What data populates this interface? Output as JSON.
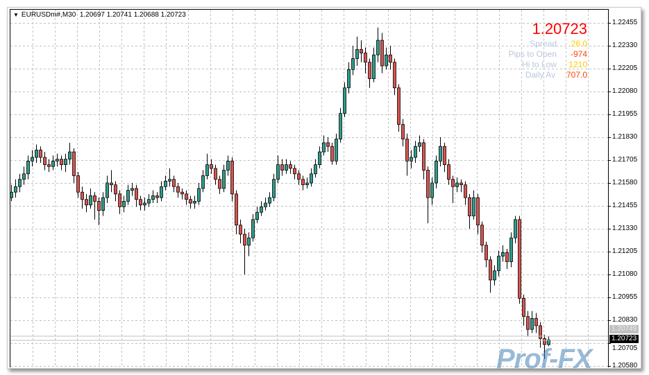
{
  "header": {
    "symbol": "EURUSDm#,M30",
    "ohlc": "1.20697 1.20741 1.20688 1.20723"
  },
  "info_panel": {
    "price": "1.20723",
    "rows": [
      {
        "label": "Spread",
        "value": "26.0",
        "color": "#ffcc00"
      },
      {
        "label": "Pips to Open",
        "value": "-974",
        "color": "#ff4400"
      },
      {
        "label": "Hi to Low",
        "value": "1210",
        "color": "#ffcc00"
      },
      {
        "label": "Daily Av",
        "value": "707.0",
        "color": "#ff4400"
      }
    ]
  },
  "price_axis": {
    "labels": [
      "1.22455",
      "1.22330",
      "1.22205",
      "1.22080",
      "1.21955",
      "1.21830",
      "1.21705",
      "1.21580",
      "1.21455",
      "1.21330",
      "1.21205",
      "1.21080",
      "1.20955",
      "1.20830",
      "1.20705",
      "1.20580"
    ],
    "ask_label": "1.20749",
    "bid_label": "1.20723"
  },
  "watermark": "Prof-FX",
  "colors": {
    "bull": "#2e9c8c",
    "bear": "#d9534f",
    "grid": "#c0c0c0"
  },
  "chart_data": {
    "type": "candlestick",
    "symbol": "EURUSDm#",
    "timeframe": "M30",
    "ylim": [
      1.2058,
      1.22455
    ],
    "grid": true,
    "bid": 1.20723,
    "ask": 1.20749,
    "candles": [
      [
        1.215,
        1.2157,
        1.2148,
        1.2153
      ],
      [
        1.2153,
        1.216,
        1.215,
        1.2156
      ],
      [
        1.2156,
        1.2163,
        1.2153,
        1.216
      ],
      [
        1.216,
        1.2167,
        1.2157,
        1.2163
      ],
      [
        1.2163,
        1.2173,
        1.216,
        1.217
      ],
      [
        1.217,
        1.2176,
        1.2167,
        1.2172
      ],
      [
        1.2172,
        1.2179,
        1.2169,
        1.2176
      ],
      [
        1.2176,
        1.2178,
        1.2169,
        1.2172
      ],
      [
        1.2172,
        1.2175,
        1.2165,
        1.2168
      ],
      [
        1.2168,
        1.2171,
        1.2164,
        1.2167
      ],
      [
        1.2167,
        1.2173,
        1.2165,
        1.217
      ],
      [
        1.217,
        1.2174,
        1.2167,
        1.2171
      ],
      [
        1.2171,
        1.2173,
        1.2165,
        1.2168
      ],
      [
        1.2168,
        1.2174,
        1.2164,
        1.2171
      ],
      [
        1.2171,
        1.218,
        1.2168,
        1.2175
      ],
      [
        1.2175,
        1.2177,
        1.2158,
        1.2162
      ],
      [
        1.2162,
        1.2164,
        1.215,
        1.2153
      ],
      [
        1.2153,
        1.2156,
        1.2144,
        1.2149
      ],
      [
        1.2149,
        1.2152,
        1.2142,
        1.2146
      ],
      [
        1.2146,
        1.2155,
        1.2144,
        1.2151
      ],
      [
        1.2151,
        1.2153,
        1.2138,
        1.2148
      ],
      [
        1.2148,
        1.215,
        1.2135,
        1.2143
      ],
      [
        1.2143,
        1.2153,
        1.214,
        1.215
      ],
      [
        1.215,
        1.2162,
        1.2147,
        1.2158
      ],
      [
        1.2158,
        1.2165,
        1.2153,
        1.2157
      ],
      [
        1.2157,
        1.2159,
        1.2148,
        1.2152
      ],
      [
        1.2152,
        1.2154,
        1.2141,
        1.2145
      ],
      [
        1.2145,
        1.2151,
        1.2142,
        1.2148
      ],
      [
        1.2148,
        1.2157,
        1.2146,
        1.2154
      ],
      [
        1.2154,
        1.2158,
        1.2151,
        1.2155
      ],
      [
        1.2155,
        1.2157,
        1.2145,
        1.2149
      ],
      [
        1.2149,
        1.2151,
        1.2143,
        1.2146
      ],
      [
        1.2146,
        1.215,
        1.2143,
        1.2147
      ],
      [
        1.2147,
        1.2152,
        1.2145,
        1.2149
      ],
      [
        1.2149,
        1.2154,
        1.2147,
        1.2151
      ],
      [
        1.2151,
        1.2153,
        1.2147,
        1.215
      ],
      [
        1.215,
        1.2159,
        1.2148,
        1.2156
      ],
      [
        1.2156,
        1.2162,
        1.2154,
        1.2159
      ],
      [
        1.2159,
        1.2166,
        1.2156,
        1.216
      ],
      [
        1.216,
        1.2162,
        1.2153,
        1.2156
      ],
      [
        1.2156,
        1.2158,
        1.215,
        1.2153
      ],
      [
        1.2153,
        1.2155,
        1.2149,
        1.2152
      ],
      [
        1.2152,
        1.2154,
        1.2146,
        1.2149
      ],
      [
        1.2149,
        1.2151,
        1.2144,
        1.2147
      ],
      [
        1.2147,
        1.2151,
        1.2144,
        1.2148
      ],
      [
        1.2148,
        1.2158,
        1.2146,
        1.2155
      ],
      [
        1.2155,
        1.2165,
        1.2153,
        1.2162
      ],
      [
        1.2162,
        1.2174,
        1.216,
        1.2168
      ],
      [
        1.2168,
        1.2171,
        1.2163,
        1.2166
      ],
      [
        1.2166,
        1.2168,
        1.2157,
        1.216
      ],
      [
        1.216,
        1.2162,
        1.2152,
        1.2155
      ],
      [
        1.2155,
        1.2168,
        1.2153,
        1.2165
      ],
      [
        1.2165,
        1.2173,
        1.2162,
        1.217
      ],
      [
        1.217,
        1.2172,
        1.2148,
        1.2152
      ],
      [
        1.2152,
        1.2154,
        1.213,
        1.2135
      ],
      [
        1.2135,
        1.2138,
        1.2125,
        1.213
      ],
      [
        1.213,
        1.2133,
        1.2108,
        1.2124
      ],
      [
        1.2124,
        1.2131,
        1.2118,
        1.2128
      ],
      [
        1.2128,
        1.2141,
        1.2126,
        1.2138
      ],
      [
        1.2138,
        1.2145,
        1.2136,
        1.2142
      ],
      [
        1.2142,
        1.2148,
        1.214,
        1.2145
      ],
      [
        1.2145,
        1.215,
        1.2143,
        1.2147
      ],
      [
        1.2147,
        1.2153,
        1.2145,
        1.215
      ],
      [
        1.215,
        1.2163,
        1.2148,
        1.216
      ],
      [
        1.216,
        1.2173,
        1.2158,
        1.2168
      ],
      [
        1.2168,
        1.2171,
        1.2162,
        1.2165
      ],
      [
        1.2165,
        1.2171,
        1.2163,
        1.2168
      ],
      [
        1.2168,
        1.217,
        1.2163,
        1.2166
      ],
      [
        1.2166,
        1.2168,
        1.216,
        1.2163
      ],
      [
        1.2163,
        1.2165,
        1.2157,
        1.216
      ],
      [
        1.216,
        1.2162,
        1.2154,
        1.2157
      ],
      [
        1.2157,
        1.2161,
        1.2155,
        1.2158
      ],
      [
        1.2158,
        1.2166,
        1.2156,
        1.2163
      ],
      [
        1.2163,
        1.2171,
        1.2161,
        1.2168
      ],
      [
        1.2168,
        1.2178,
        1.2166,
        1.2175
      ],
      [
        1.2175,
        1.2184,
        1.2173,
        1.218
      ],
      [
        1.218,
        1.2183,
        1.2175,
        1.2178
      ],
      [
        1.2178,
        1.218,
        1.2168,
        1.217
      ],
      [
        1.217,
        1.2185,
        1.2168,
        1.2182
      ],
      [
        1.2182,
        1.2199,
        1.218,
        1.2196
      ],
      [
        1.2196,
        1.2213,
        1.2194,
        1.221
      ],
      [
        1.221,
        1.2224,
        1.2207,
        1.222
      ],
      [
        1.222,
        1.2233,
        1.2217,
        1.2226
      ],
      [
        1.2226,
        1.2238,
        1.2222,
        1.2231
      ],
      [
        1.2231,
        1.2236,
        1.2224,
        1.2229
      ],
      [
        1.2229,
        1.2232,
        1.2218,
        1.2224
      ],
      [
        1.2224,
        1.2226,
        1.221,
        1.2215
      ],
      [
        1.2215,
        1.2232,
        1.2213,
        1.2228
      ],
      [
        1.2228,
        1.2243,
        1.2224,
        1.2236
      ],
      [
        1.2236,
        1.224,
        1.2218,
        1.2222
      ],
      [
        1.2222,
        1.2232,
        1.222,
        1.2228
      ],
      [
        1.2228,
        1.2233,
        1.222,
        1.2224
      ],
      [
        1.2224,
        1.2226,
        1.2206,
        1.221
      ],
      [
        1.221,
        1.2212,
        1.2186,
        1.219
      ],
      [
        1.219,
        1.2193,
        1.2178,
        1.2182
      ],
      [
        1.2182,
        1.2185,
        1.2162,
        1.217
      ],
      [
        1.217,
        1.2176,
        1.2166,
        1.2172
      ],
      [
        1.2172,
        1.2181,
        1.2169,
        1.2178
      ],
      [
        1.2178,
        1.2184,
        1.2175,
        1.218
      ],
      [
        1.218,
        1.2182,
        1.216,
        1.2165
      ],
      [
        1.2165,
        1.2167,
        1.2136,
        1.215
      ],
      [
        1.215,
        1.2161,
        1.2146,
        1.2158
      ],
      [
        1.2158,
        1.2173,
        1.2155,
        1.217
      ],
      [
        1.217,
        1.2183,
        1.2167,
        1.2178
      ],
      [
        1.2178,
        1.218,
        1.2164,
        1.2168
      ],
      [
        1.2168,
        1.2171,
        1.2157,
        1.216
      ],
      [
        1.216,
        1.2162,
        1.2147,
        1.2156
      ],
      [
        1.2156,
        1.2161,
        1.2153,
        1.2158
      ],
      [
        1.2158,
        1.216,
        1.2153,
        1.2157
      ],
      [
        1.2157,
        1.2159,
        1.2146,
        1.215
      ],
      [
        1.215,
        1.2152,
        1.2133,
        1.214
      ],
      [
        1.214,
        1.2154,
        1.2138,
        1.215
      ],
      [
        1.215,
        1.2152,
        1.213,
        1.2135
      ],
      [
        1.2135,
        1.2137,
        1.212,
        1.2124
      ],
      [
        1.2124,
        1.2126,
        1.2112,
        1.2116
      ],
      [
        1.2116,
        1.2118,
        1.2098,
        1.2105
      ],
      [
        1.2105,
        1.2113,
        1.2102,
        1.211
      ],
      [
        1.211,
        1.2121,
        1.2107,
        1.2118
      ],
      [
        1.2118,
        1.2124,
        1.2115,
        1.212
      ],
      [
        1.212,
        1.2122,
        1.2111,
        1.2115
      ],
      [
        1.2115,
        1.2131,
        1.2112,
        1.2128
      ],
      [
        1.2128,
        1.214,
        1.2125,
        1.2138
      ],
      [
        1.2138,
        1.214,
        1.2092,
        1.2095
      ],
      [
        1.2095,
        1.2097,
        1.208,
        1.2085
      ],
      [
        1.2085,
        1.2088,
        1.2074,
        1.2078
      ],
      [
        1.2078,
        1.2088,
        1.2076,
        1.2084
      ],
      [
        1.2084,
        1.2087,
        1.2076,
        1.208
      ],
      [
        1.208,
        1.2082,
        1.2068,
        1.2073
      ],
      [
        1.2073,
        1.2075,
        1.20618,
        1.20697
      ],
      [
        1.20697,
        1.20741,
        1.20688,
        1.20723
      ]
    ]
  }
}
